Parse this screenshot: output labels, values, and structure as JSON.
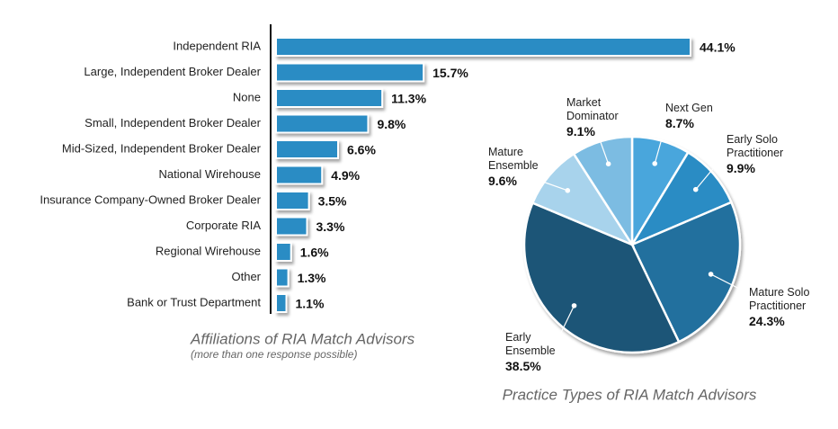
{
  "chart_data": [
    {
      "type": "bar",
      "orientation": "horizontal",
      "title": "Affiliations of RIA Match Advisors",
      "subtitle": "(more than one response possible)",
      "categories": [
        "Independent RIA",
        "Large, Independent Broker Dealer",
        "None",
        "Small, Independent Broker Dealer",
        "Mid-Sized, Independent Broker Dealer",
        "National Wirehouse",
        "Insurance Company-Owned Broker Dealer",
        "Corporate RIA",
        "Regional Wirehouse",
        "Other",
        "Bank or Trust Department"
      ],
      "values": [
        44.1,
        15.7,
        11.3,
        9.8,
        6.6,
        4.9,
        3.5,
        3.3,
        1.6,
        1.3,
        1.1
      ],
      "value_labels": [
        "44.1%",
        "15.7%",
        "11.3%",
        "9.8%",
        "6.6%",
        "4.9%",
        "3.5%",
        "3.3%",
        "1.6%",
        "1.3%",
        "1.1%"
      ],
      "color": "#2a8cc4"
    },
    {
      "type": "pie",
      "title": "Practice Types of RIA Match Advisors",
      "categories": [
        "Next Gen",
        "Early Solo Practitioner",
        "Mature Solo Practitioner",
        "Early Ensemble",
        "Mature Ensemble",
        "Market Dominator"
      ],
      "values": [
        8.7,
        9.9,
        24.3,
        38.5,
        9.6,
        9.1
      ],
      "value_labels": [
        "8.7%",
        "9.9%",
        "24.3%",
        "38.5%",
        "9.6%",
        "9.1%"
      ],
      "colors": [
        "#4aa6dc",
        "#2a8cc4",
        "#23709e",
        "#1b5577",
        "#a8d3ec",
        "#7bbce2"
      ]
    }
  ]
}
